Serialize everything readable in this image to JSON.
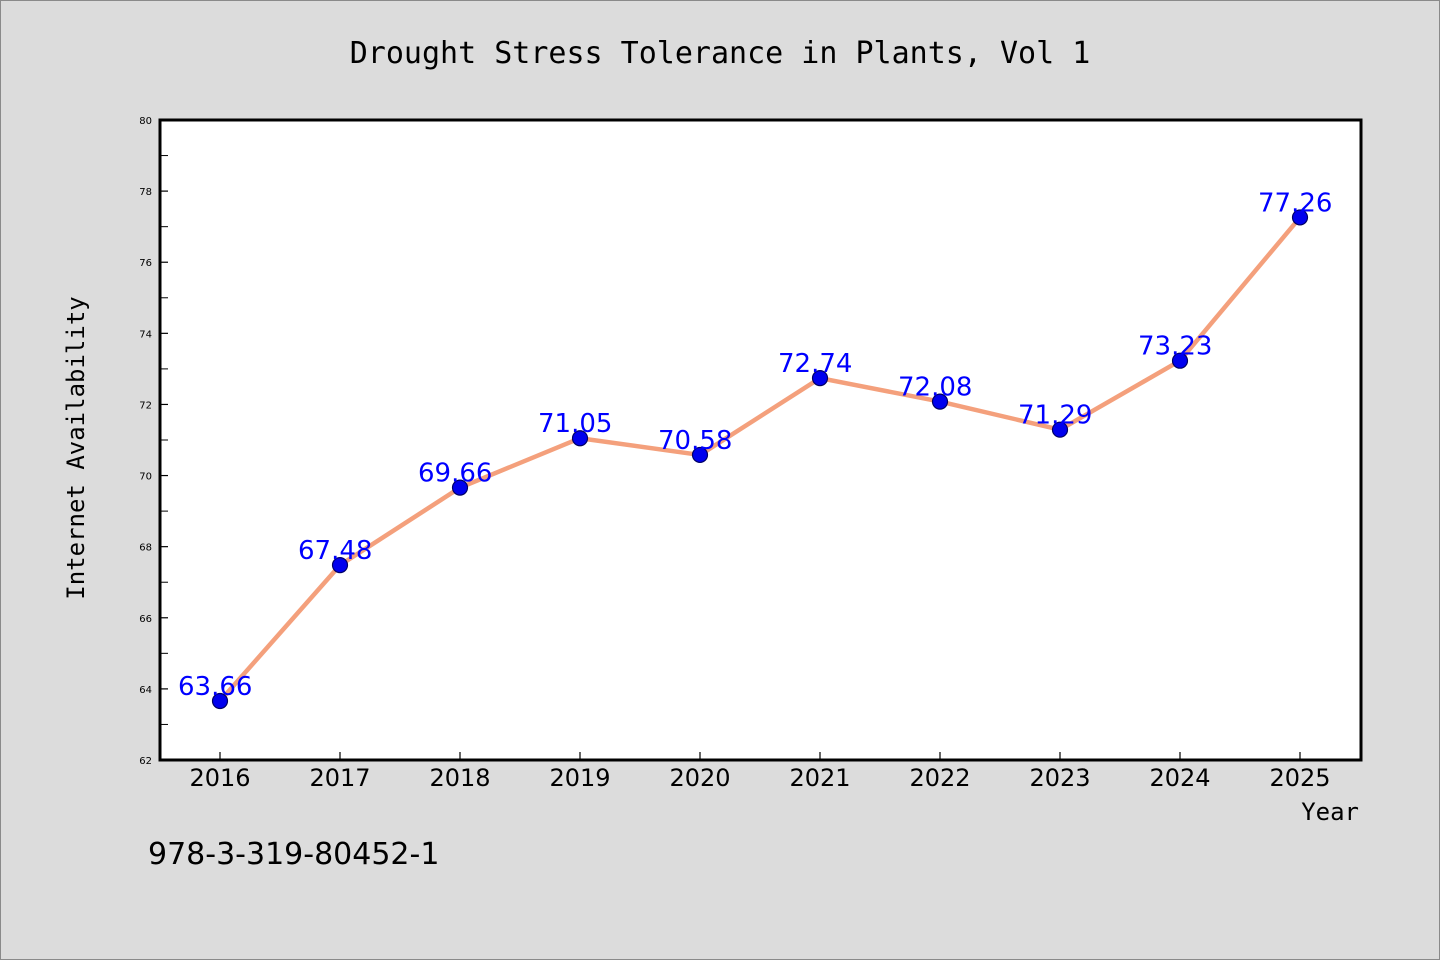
{
  "chart_data": {
    "type": "line",
    "title": "Drought Stress Tolerance in Plants, Vol 1",
    "xlabel": "Year",
    "ylabel": "Internet Availability",
    "categories": [
      "2016",
      "2017",
      "2018",
      "2019",
      "2020",
      "2021",
      "2022",
      "2023",
      "2024",
      "2025"
    ],
    "values": [
      63.66,
      67.48,
      69.66,
      71.05,
      70.58,
      72.74,
      72.08,
      71.29,
      73.23,
      77.26
    ],
    "data_labels": [
      "63.66",
      "67.48",
      "69.66",
      "71.05",
      "70.58",
      "72.74",
      "72.08",
      "71.29",
      "73.23",
      "77.26"
    ],
    "ylim": [
      62,
      80
    ],
    "yticks": [
      62,
      64,
      66,
      68,
      70,
      72,
      74,
      76,
      78,
      80
    ],
    "ytick_labels": [
      "62",
      "64",
      "66",
      "68",
      "70",
      "72",
      "74",
      "76",
      "78",
      "80"
    ],
    "grid": false,
    "legend": "none",
    "colors": {
      "line": "#f4a07c",
      "marker_fill": "#0000ee",
      "marker_edge": "#000066",
      "data_label": "#0000ff",
      "background": "#dcdcdc",
      "plot_area": "#ffffff"
    }
  },
  "annotation": "978-3-319-80452-1"
}
